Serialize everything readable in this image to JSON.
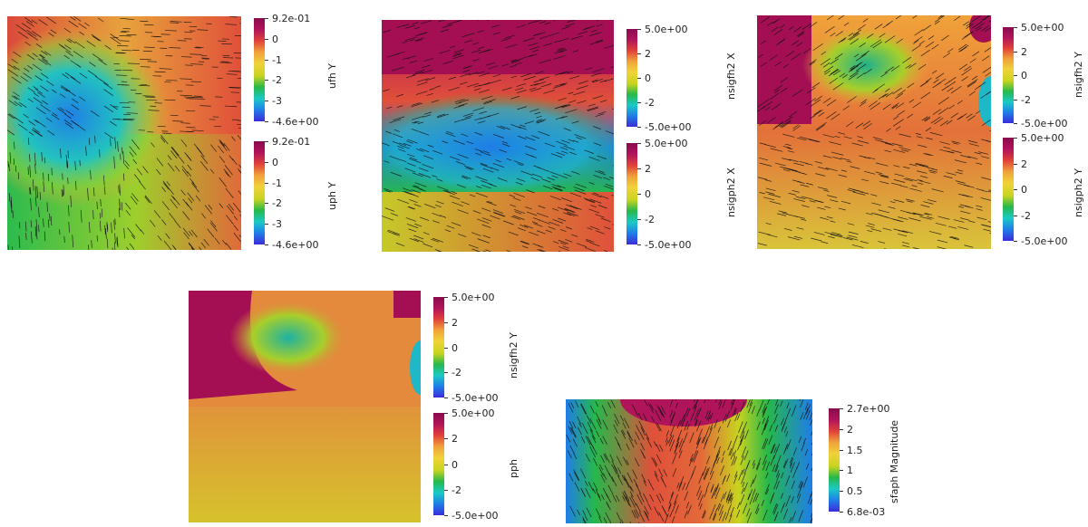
{
  "colors": {
    "colormap": [
      "#3b2bd8",
      "#1f7ee8",
      "#1bc9c6",
      "#27b84a",
      "#c8d41f",
      "#f0d23a",
      "#f0a23a",
      "#e0413a",
      "#b0145a",
      "#8a0a4e"
    ],
    "arrow": "#111111"
  },
  "panels": [
    {
      "id": "p1",
      "colorbars": [
        {
          "label": "ufh Y",
          "ticks": [
            "9.2e-01",
            "0",
            "-1",
            "-2",
            "-3",
            "-4.6e+00"
          ]
        },
        {
          "label": "uph Y",
          "ticks": [
            "9.2e-01",
            "0",
            "-1",
            "-2",
            "-3",
            "-4.6e+00"
          ]
        }
      ]
    },
    {
      "id": "p2",
      "colorbars": [
        {
          "label": "nsigfh2 X",
          "ticks": [
            "5.0e+00",
            "2",
            "0",
            "-2",
            "-5.0e+00"
          ]
        },
        {
          "label": "nsigph2 X",
          "ticks": [
            "5.0e+00",
            "2",
            "0",
            "-2",
            "-5.0e+00"
          ]
        }
      ]
    },
    {
      "id": "p3",
      "colorbars": [
        {
          "label": "nsigfh2 Y",
          "ticks": [
            "5.0e+00",
            "2",
            "0",
            "-2",
            "-5.0e+00"
          ]
        },
        {
          "label": "nsigph2 Y",
          "ticks": [
            "5.0e+00",
            "2",
            "0",
            "-2",
            "-5.0e+00"
          ]
        }
      ]
    },
    {
      "id": "p4",
      "colorbars": [
        {
          "label": "nsigfh2 Y",
          "ticks": [
            "5.0e+00",
            "2",
            "0",
            "-2",
            "-5.0e+00"
          ]
        },
        {
          "label": "pph",
          "ticks": [
            "5.0e+00",
            "2",
            "0",
            "-2",
            "-5.0e+00"
          ]
        }
      ]
    },
    {
      "id": "p5",
      "colorbars": [
        {
          "label": "sfaph Magnitude",
          "ticks": [
            "2.7e+00",
            "2",
            "1.5",
            "1",
            "0.5",
            "6.8e-03"
          ]
        }
      ]
    }
  ]
}
